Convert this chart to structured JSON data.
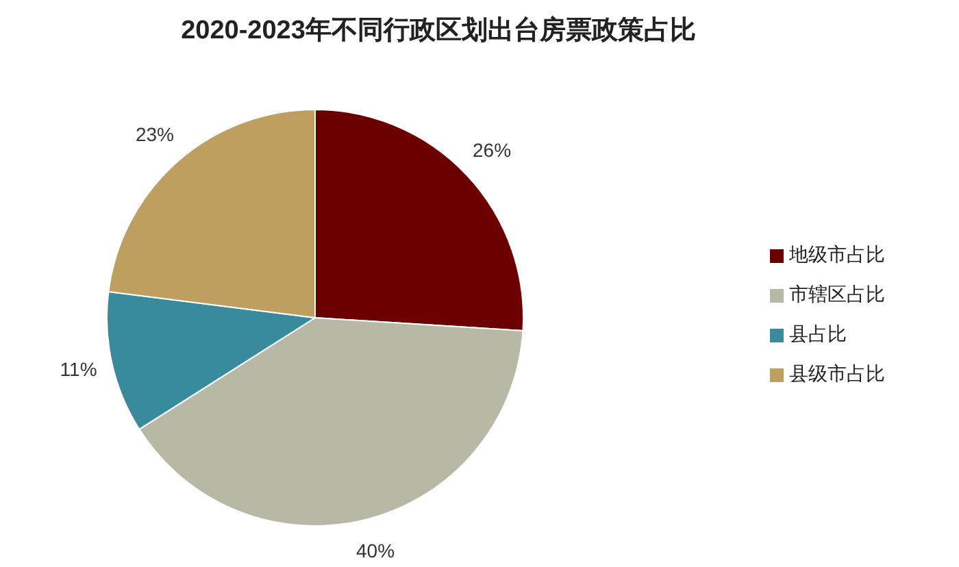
{
  "chart_data": {
    "type": "pie",
    "title": "2020-2023年不同行政区划出台房票政策占比",
    "categories": [
      "地级市占比",
      "市辖区占比",
      "县占比",
      "县级市占比"
    ],
    "values": [
      26,
      40,
      11,
      23
    ],
    "colors": [
      "#6b0000",
      "#b8b8a6",
      "#3a8a9e",
      "#bf9f5f"
    ],
    "value_labels": [
      "26%",
      "40%",
      "11%",
      "23%"
    ],
    "legend": "right"
  }
}
